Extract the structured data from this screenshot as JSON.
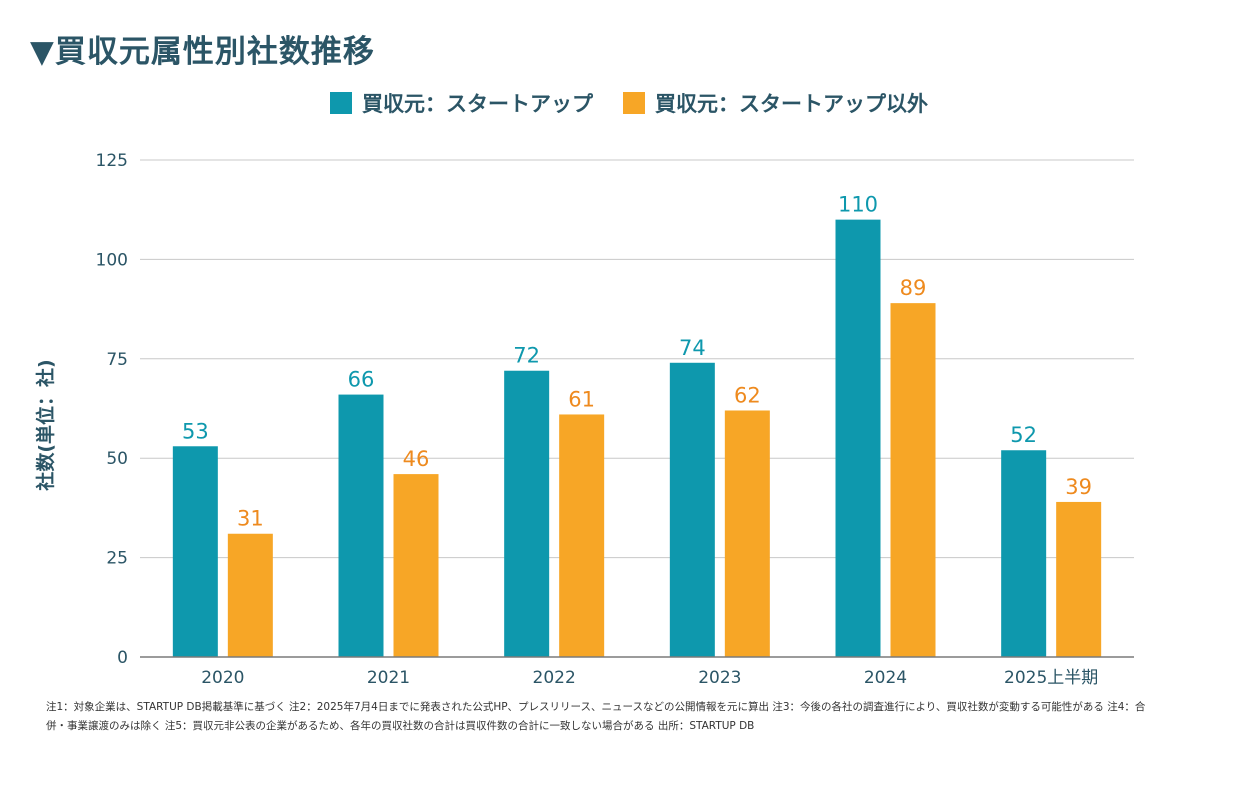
{
  "title": "▼買収元属性別社数推移",
  "note": "注1：対象企業は、STARTUP DB掲載基準に基づく 注2：2025年7月4日までに発表された公式HP、プレスリリース、ニュースなどの公開情報を元に算出 注3：今後の各社の調査進行により、買収社数が変動する可能性がある 注4：合併・事業譲渡のみは除く 注5：買収元非公表の企業があるため、各年の買収社数の合計は買収件数の合計に一致しない場合がある 出所：STARTUP DB",
  "colors": {
    "startup": "#0e98ad",
    "non_startup": "#f7a626",
    "label_startup": "#0e98ad",
    "label_non_startup": "#ee8a1e",
    "title": "#2b5566"
  },
  "chart_data": {
    "type": "bar",
    "title": "▼買収元属性別社数推移",
    "xlabel": "",
    "ylabel": "社数(単位：社)",
    "categories": [
      "2020",
      "2021",
      "2022",
      "2023",
      "2024",
      "2025上半期"
    ],
    "series": [
      {
        "name": "買収元：スタートアップ",
        "values": [
          53,
          66,
          72,
          74,
          110,
          52
        ]
      },
      {
        "name": "買収元：スタートアップ以外",
        "values": [
          31,
          46,
          61,
          62,
          89,
          39
        ]
      }
    ],
    "ylim": [
      0,
      125
    ],
    "yticks": [
      0,
      25,
      50,
      75,
      100,
      125
    ],
    "grid": true,
    "legend_position": "top"
  }
}
